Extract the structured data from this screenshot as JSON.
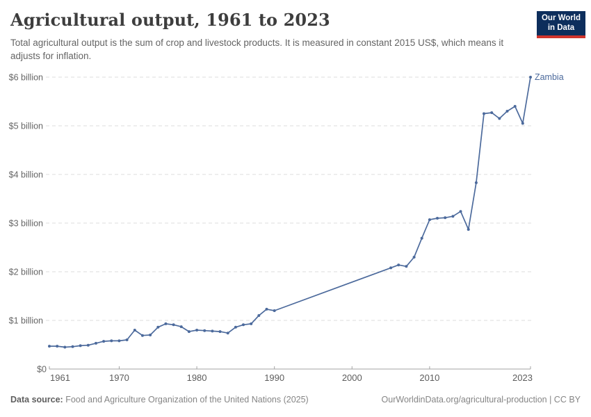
{
  "header": {
    "title": "Agricultural output, 1961 to 2023",
    "subtitle": "Total agricultural output is the sum of crop and livestock products. It is measured in constant 2015 US$, which means it adjusts for inflation.",
    "logo_line1": "Our World",
    "logo_line2": "in Data"
  },
  "footer": {
    "source_label": "Data source:",
    "source_text": " Food and Agriculture Organization of the United Nations (2025)",
    "link_text": "OurWorldinData.org/agricultural-production | CC BY"
  },
  "colors": {
    "series_blue": "#4c6a9c",
    "gridline": "#dcdcdc",
    "axis": "#a3a3a3",
    "logo_bg": "#0d2e5c",
    "logo_accent": "#d0342c"
  },
  "chart_data": {
    "type": "line",
    "title": "Agricultural output, 1961 to 2023",
    "unit": "constant 2015 US$",
    "xlim": [
      1961,
      2023
    ],
    "ylim": [
      0,
      6.2
    ],
    "grid": "horizontal-dashed",
    "legend_position": "end-of-line-label",
    "x_ticks": [
      1961,
      1970,
      1980,
      1990,
      2000,
      2010,
      2023
    ],
    "y_ticks": [
      0,
      1,
      2,
      3,
      4,
      5,
      6
    ],
    "y_tick_labels": [
      "$0",
      "$1 billion",
      "$2 billion",
      "$3 billion",
      "$4 billion",
      "$5 billion",
      "$6 billion"
    ],
    "series": [
      {
        "name": "Zambia",
        "color": "#4c6a9c",
        "points": [
          [
            1961,
            0.47
          ],
          [
            1962,
            0.47
          ],
          [
            1963,
            0.45
          ],
          [
            1964,
            0.46
          ],
          [
            1965,
            0.48
          ],
          [
            1966,
            0.49
          ],
          [
            1967,
            0.53
          ],
          [
            1968,
            0.57
          ],
          [
            1969,
            0.58
          ],
          [
            1970,
            0.58
          ],
          [
            1971,
            0.6
          ],
          [
            1972,
            0.8
          ],
          [
            1973,
            0.69
          ],
          [
            1974,
            0.7
          ],
          [
            1975,
            0.86
          ],
          [
            1976,
            0.93
          ],
          [
            1977,
            0.91
          ],
          [
            1978,
            0.87
          ],
          [
            1979,
            0.77
          ],
          [
            1980,
            0.8
          ],
          [
            1981,
            0.79
          ],
          [
            1982,
            0.78
          ],
          [
            1983,
            0.77
          ],
          [
            1984,
            0.74
          ],
          [
            1985,
            0.86
          ],
          [
            1986,
            0.91
          ],
          [
            1987,
            0.93
          ],
          [
            1988,
            1.1
          ],
          [
            1989,
            1.23
          ],
          [
            1990,
            1.2
          ],
          [
            2005,
            2.08
          ],
          [
            2006,
            2.14
          ],
          [
            2007,
            2.11
          ],
          [
            2008,
            2.3
          ],
          [
            2009,
            2.69
          ],
          [
            2010,
            3.07
          ],
          [
            2011,
            3.1
          ],
          [
            2012,
            3.11
          ],
          [
            2013,
            3.14
          ],
          [
            2014,
            3.24
          ],
          [
            2015,
            2.87
          ],
          [
            2016,
            3.83
          ],
          [
            2017,
            5.25
          ],
          [
            2018,
            5.27
          ],
          [
            2019,
            5.15
          ],
          [
            2020,
            5.3
          ],
          [
            2021,
            5.4
          ],
          [
            2022,
            5.05
          ],
          [
            2023,
            6.0
          ]
        ]
      }
    ]
  }
}
